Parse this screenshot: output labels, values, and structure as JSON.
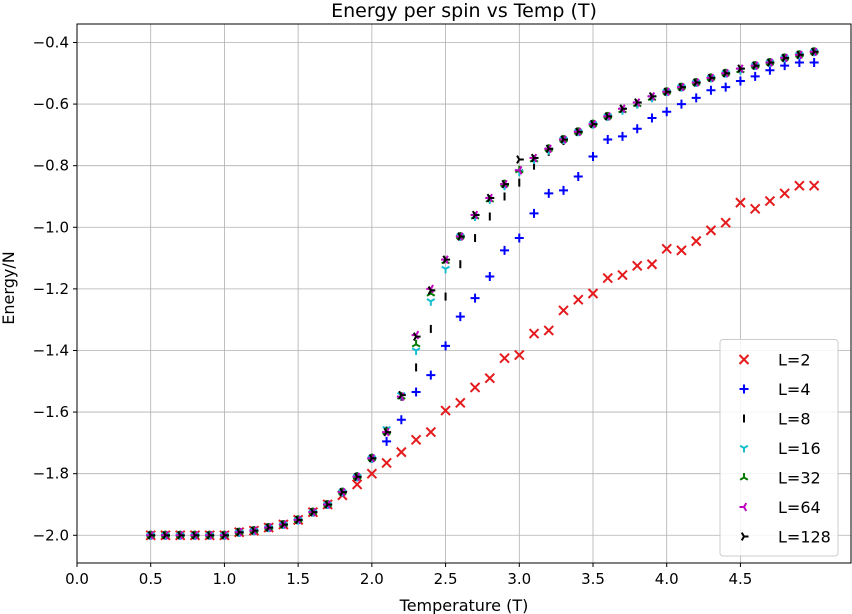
{
  "chart_data": {
    "type": "scatter",
    "title": "Energy per spin vs Temp (T)",
    "xlabel": "Temperature (T)",
    "ylabel": "Energy/N",
    "xlim": [
      0.0,
      5.25
    ],
    "ylim": [
      -2.09,
      -0.34
    ],
    "xticks": [
      0.0,
      0.5,
      1.0,
      1.5,
      2.0,
      2.5,
      3.0,
      3.5,
      4.0,
      4.5
    ],
    "xtick_labels": [
      "0.0",
      "0.5",
      "1.0",
      "1.5",
      "2.0",
      "2.5",
      "3.0",
      "3.5",
      "4.0",
      "4.5"
    ],
    "yticks": [
      -2.0,
      -1.8,
      -1.6,
      -1.4,
      -1.2,
      -1.0,
      -0.8,
      -0.6,
      -0.4
    ],
    "ytick_labels": [
      "−2.0",
      "−1.8",
      "−1.6",
      "−1.4",
      "−1.2",
      "−1.0",
      "−0.8",
      "−0.6",
      "−0.4"
    ],
    "grid": true,
    "legend_position": "lower-right",
    "x": [
      0.5,
      0.6,
      0.7,
      0.8,
      0.9,
      1.0,
      1.1,
      1.2,
      1.3,
      1.4,
      1.5,
      1.6,
      1.7,
      1.8,
      1.9,
      2.0,
      2.1,
      2.2,
      2.3,
      2.4,
      2.5,
      2.6,
      2.7,
      2.8,
      2.9,
      3.0,
      3.1,
      3.2,
      3.3,
      3.4,
      3.5,
      3.6,
      3.7,
      3.8,
      3.9,
      4.0,
      4.1,
      4.2,
      4.3,
      4.4,
      4.5,
      4.6,
      4.7,
      4.8,
      4.9,
      5.0
    ],
    "series": [
      {
        "name": "L=2",
        "marker": "x",
        "color": "#e41a1c",
        "values": [
          -2.0,
          -2.0,
          -2.0,
          -2.0,
          -2.0,
          -2.0,
          -1.99,
          -1.985,
          -1.975,
          -1.965,
          -1.95,
          -1.925,
          -1.9,
          -1.87,
          -1.835,
          -1.8,
          -1.765,
          -1.73,
          -1.69,
          -1.665,
          -1.595,
          -1.57,
          -1.52,
          -1.49,
          -1.425,
          -1.415,
          -1.345,
          -1.335,
          -1.27,
          -1.235,
          -1.215,
          -1.165,
          -1.155,
          -1.125,
          -1.12,
          -1.07,
          -1.075,
          -1.045,
          -1.01,
          -0.985,
          -0.92,
          -0.94,
          -0.915,
          -0.89,
          -0.865,
          -0.865
        ]
      },
      {
        "name": "L=4",
        "marker": "+",
        "color": "#0000ff",
        "values": [
          -2.0,
          -2.0,
          -2.0,
          -2.0,
          -2.0,
          -2.0,
          -1.99,
          -1.985,
          -1.975,
          -1.965,
          -1.95,
          -1.925,
          -1.9,
          -1.86,
          -1.81,
          -1.75,
          -1.695,
          -1.625,
          -1.535,
          -1.48,
          -1.385,
          -1.29,
          -1.23,
          -1.16,
          -1.075,
          -1.035,
          -0.955,
          -0.89,
          -0.88,
          -0.835,
          -0.77,
          -0.715,
          -0.705,
          -0.68,
          -0.645,
          -0.625,
          -0.6,
          -0.58,
          -0.555,
          -0.545,
          -0.525,
          -0.51,
          -0.49,
          -0.475,
          -0.465,
          -0.465
        ]
      },
      {
        "name": "L=8",
        "marker": "vline",
        "color": "#000000",
        "values": [
          -2.0,
          -2.0,
          -2.0,
          -2.0,
          -2.0,
          -2.0,
          -1.99,
          -1.985,
          -1.975,
          -1.965,
          -1.95,
          -1.925,
          -1.9,
          -1.86,
          -1.81,
          -1.75,
          -1.66,
          -1.55,
          -1.455,
          -1.33,
          -1.225,
          -1.12,
          -1.035,
          -0.965,
          -0.9,
          -0.855,
          -0.8,
          -0.755,
          -0.72,
          -0.69,
          -0.665,
          -0.64,
          -0.62,
          -0.6,
          -0.58,
          -0.56,
          -0.545,
          -0.53,
          -0.515,
          -0.5,
          -0.49,
          -0.475,
          -0.465,
          -0.45,
          -0.44,
          -0.43
        ]
      },
      {
        "name": "L=16",
        "marker": "tri_down",
        "color": "#17becf",
        "values": [
          -2.0,
          -2.0,
          -2.0,
          -2.0,
          -2.0,
          -2.0,
          -1.99,
          -1.985,
          -1.975,
          -1.965,
          -1.95,
          -1.925,
          -1.9,
          -1.86,
          -1.81,
          -1.75,
          -1.655,
          -1.545,
          -1.4,
          -1.24,
          -1.135,
          -1.03,
          -0.965,
          -0.91,
          -0.865,
          -0.82,
          -0.78,
          -0.75,
          -0.715,
          -0.69,
          -0.665,
          -0.64,
          -0.62,
          -0.6,
          -0.58,
          -0.56,
          -0.545,
          -0.53,
          -0.515,
          -0.5,
          -0.49,
          -0.475,
          -0.465,
          -0.45,
          -0.44,
          -0.43
        ]
      },
      {
        "name": "L=32",
        "marker": "tri_up",
        "color": "#007a00",
        "values": [
          -2.0,
          -2.0,
          -2.0,
          -2.0,
          -2.0,
          -2.0,
          -1.99,
          -1.985,
          -1.975,
          -1.965,
          -1.95,
          -1.925,
          -1.9,
          -1.86,
          -1.81,
          -1.75,
          -1.665,
          -1.55,
          -1.38,
          -1.215,
          -1.11,
          -1.03,
          -0.965,
          -0.91,
          -0.86,
          -0.815,
          -0.78,
          -0.745,
          -0.715,
          -0.69,
          -0.665,
          -0.64,
          -0.62,
          -0.6,
          -0.58,
          -0.56,
          -0.545,
          -0.53,
          -0.515,
          -0.5,
          -0.49,
          -0.475,
          -0.465,
          -0.45,
          -0.44,
          -0.43
        ]
      },
      {
        "name": "L=64",
        "marker": "tri_left",
        "color": "#bf00bf",
        "values": [
          -2.0,
          -2.0,
          -2.0,
          -2.0,
          -2.0,
          -2.0,
          -1.99,
          -1.985,
          -1.975,
          -1.965,
          -1.95,
          -1.925,
          -1.9,
          -1.86,
          -1.81,
          -1.75,
          -1.665,
          -1.55,
          -1.35,
          -1.2,
          -1.105,
          -1.03,
          -0.96,
          -0.905,
          -0.86,
          -0.815,
          -0.775,
          -0.745,
          -0.715,
          -0.69,
          -0.665,
          -0.64,
          -0.615,
          -0.595,
          -0.575,
          -0.56,
          -0.545,
          -0.53,
          -0.515,
          -0.5,
          -0.485,
          -0.475,
          -0.465,
          -0.45,
          -0.44,
          -0.43
        ]
      },
      {
        "name": "L=128",
        "marker": "tri_right",
        "color": "#000000",
        "values": [
          -2.0,
          -2.0,
          -2.0,
          -2.0,
          -2.0,
          -2.0,
          -1.99,
          -1.985,
          -1.975,
          -1.965,
          -1.95,
          -1.925,
          -1.9,
          -1.86,
          -1.81,
          -1.75,
          -1.665,
          -1.545,
          -1.355,
          -1.205,
          -1.105,
          -1.03,
          -0.96,
          -0.905,
          -0.86,
          -0.78,
          -0.775,
          -0.745,
          -0.715,
          -0.69,
          -0.665,
          -0.64,
          -0.615,
          -0.595,
          -0.575,
          -0.56,
          -0.545,
          -0.53,
          -0.515,
          -0.5,
          -0.485,
          -0.475,
          -0.465,
          -0.45,
          -0.44,
          -0.43
        ]
      }
    ]
  }
}
